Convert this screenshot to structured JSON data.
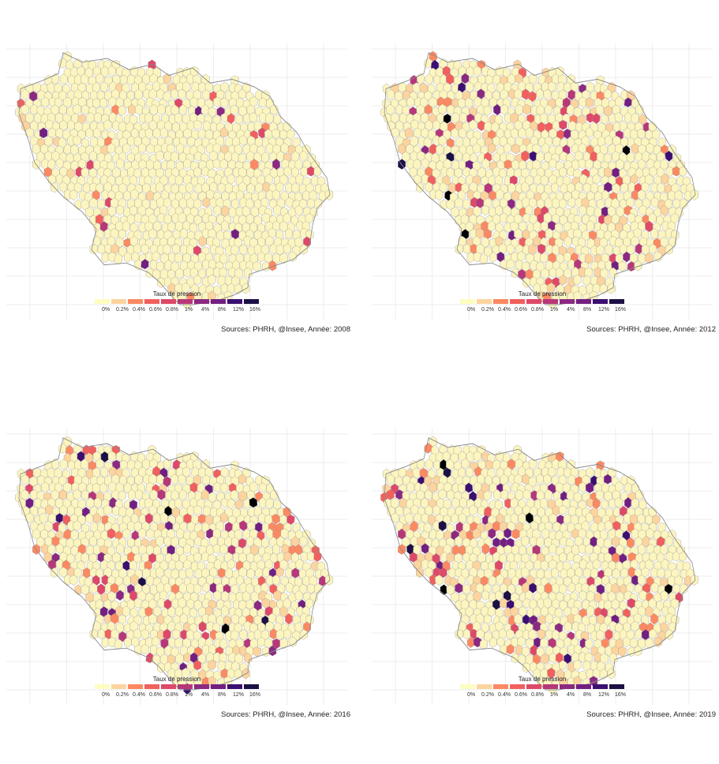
{
  "legend": {
    "title": "Taux de pression",
    "labels": [
      "0%",
      "0.2%",
      "0.4%",
      "0.6%",
      "0.8%",
      "1%",
      "4%",
      "8%",
      "12%",
      "16%"
    ],
    "colors": [
      "#fcfdbf",
      "#fdd49e",
      "#fc8961",
      "#f1605d",
      "#de4968",
      "#b73779",
      "#8c2981",
      "#721f81",
      "#3b0f70",
      "#1c1044",
      "#000004"
    ]
  },
  "panels": [
    {
      "id": "p2008",
      "source": "Sources: PHRH, @Insee, Année: 2008",
      "year": 2008,
      "intensity": 0.08
    },
    {
      "id": "p2012",
      "source": "Sources: PHRH, @Insee, Année: 2012",
      "year": 2012,
      "intensity": 0.2
    },
    {
      "id": "p2016",
      "source": "Sources: PHRH, @Insee, Année: 2016",
      "year": 2016,
      "intensity": 0.26
    },
    {
      "id": "p2019",
      "source": "Sources: PHRH, @Insee, Année: 2019",
      "year": 2019,
      "intensity": 0.25
    }
  ],
  "map_style": {
    "base_fill": "#fcf5bf",
    "border": "#9a9a9a",
    "grid": "#e6e6e6"
  }
}
